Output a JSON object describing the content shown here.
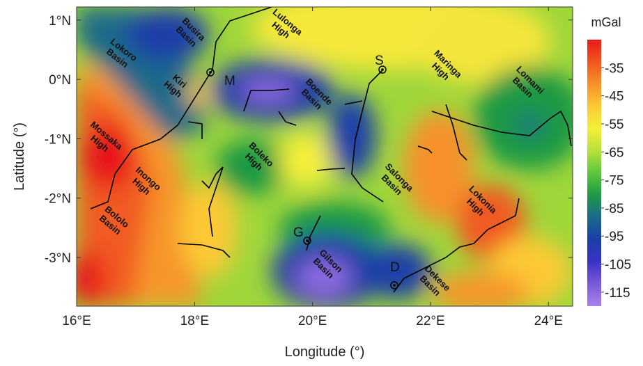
{
  "map": {
    "x_label": "Longitude (°)",
    "y_label": "Latitude (°)",
    "xlim": [
      16,
      24.41
    ],
    "ylim": [
      -3.82,
      1.22
    ],
    "xticks": [
      {
        "value": 16,
        "label": "16°E"
      },
      {
        "value": 18,
        "label": "18°E"
      },
      {
        "value": 20,
        "label": "20°E"
      },
      {
        "value": 22,
        "label": "22°E"
      },
      {
        "value": 24,
        "label": "24°E"
      }
    ],
    "yticks": [
      {
        "value": 1,
        "label": "1°N"
      },
      {
        "value": 0,
        "label": "0°N"
      },
      {
        "value": -1,
        "label": "-1°N"
      },
      {
        "value": -2,
        "label": "-2°N"
      },
      {
        "value": -3,
        "label": "-3°N"
      }
    ],
    "colorbar": {
      "title": "mGal",
      "lim": [
        -25,
        -120
      ],
      "ticks": [
        -35,
        -45,
        -55,
        -65,
        -75,
        -85,
        -95,
        -105,
        -115
      ],
      "colors": [
        "#e8191b",
        "#f2561e",
        "#f7902a",
        "#fcc936",
        "#f4ef3a",
        "#b9e03a",
        "#5cc63f",
        "#1f9a45",
        "#1a6a8a",
        "#1a3fa8",
        "#3c32c8",
        "#7a5ad8",
        "#a882ec"
      ]
    },
    "regions": [
      [
        "Lokoro",
        "Basin"
      ],
      [
        "Busira",
        "Basin"
      ],
      [
        "Lulonga",
        "High"
      ],
      [
        "Kiri",
        "High"
      ],
      [
        "Mossaka",
        "High"
      ],
      [
        "Inongo",
        "High"
      ],
      [
        "Bololo",
        "Basin"
      ],
      [
        "Boleko",
        "High"
      ],
      [
        "Boende",
        "Basin"
      ],
      [
        "Salonga",
        "Basin"
      ],
      [
        "Maringa",
        "High"
      ],
      [
        "Lomami",
        "Basin"
      ],
      [
        "Lokonia",
        "High"
      ],
      [
        "Gilson",
        "Basin"
      ],
      [
        "Dekese",
        "Basin"
      ]
    ],
    "wells": [
      "M",
      "S",
      "G",
      "D"
    ]
  }
}
